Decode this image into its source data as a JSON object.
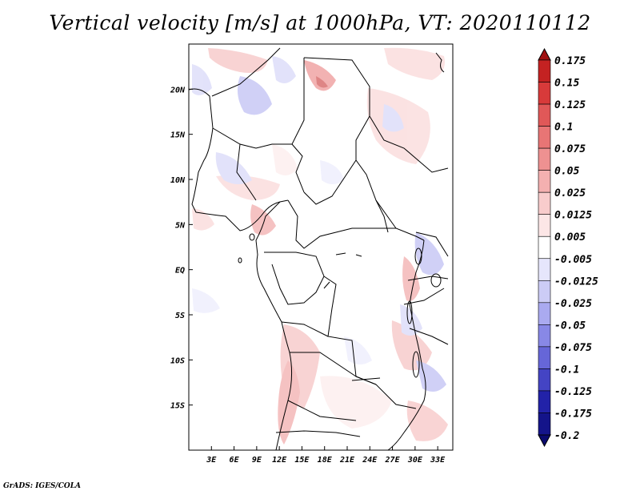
{
  "title": "Vertical velocity [m/s] at 1000hPa, VT: 2020110112",
  "footer": "GrADS: IGES/COLA",
  "map": {
    "lon_range": [
      0,
      35
    ],
    "lat_range": [
      -20,
      25
    ],
    "x_ticks": [
      "3E",
      "6E",
      "9E",
      "12E",
      "15E",
      "18E",
      "21E",
      "24E",
      "27E",
      "30E",
      "33E"
    ],
    "y_ticks": [
      "20N",
      "15N",
      "10N",
      "5N",
      "EQ",
      "5S",
      "10S",
      "15S"
    ],
    "field": "vertical velocity",
    "units": "m/s"
  },
  "colorbar": {
    "labels": [
      "0.175",
      "0.15",
      "0.125",
      "0.1",
      "0.075",
      "0.05",
      "0.025",
      "0.0125",
      "0.005",
      "-0.005",
      "-0.0125",
      "-0.025",
      "-0.05",
      "-0.075",
      "-0.1",
      "-0.125",
      "-0.175",
      "-0.2"
    ],
    "colors": [
      "#a01010",
      "#c42222",
      "#d83a3a",
      "#e05858",
      "#e87575",
      "#ee9191",
      "#f4b0b0",
      "#f8cccc",
      "#fce6e6",
      "#ffffff",
      "#e6e6fc",
      "#ccccf6",
      "#aaaaf0",
      "#8888e6",
      "#6666d8",
      "#4444c4",
      "#2222a8",
      "#14148a",
      "#0a0a6e"
    ]
  }
}
